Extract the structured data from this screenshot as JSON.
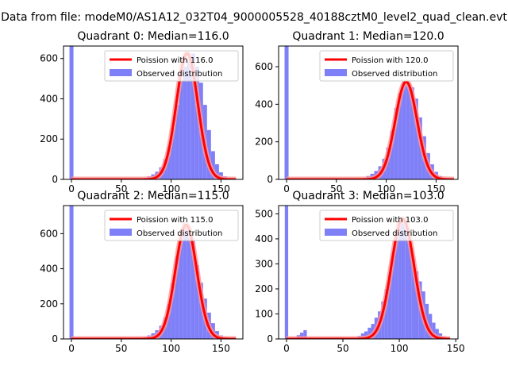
{
  "figure": {
    "suptitle": "Data from file: modeM0/AS1A12_032T04_9000005528_40188cztM0_level2_quad_clean.evt"
  },
  "colors": {
    "observed": "#7f7ff8",
    "poisson_line": "#ff0000",
    "poisson_glow": "#ff9999",
    "axis": "#000000",
    "background": "#ffffff"
  },
  "chart_data": [
    {
      "type": "bar",
      "title": "Quadrant 0: Median=116.0",
      "median": 116.0,
      "xlim": [
        -8,
        172
      ],
      "ylim": [
        0,
        662
      ],
      "xticks": [
        0,
        50,
        100,
        150
      ],
      "yticks": [
        0,
        200,
        400,
        600
      ],
      "legend": {
        "placement": "top-right",
        "line_label": "Poission with 116.0",
        "hist_label": "Observed distribution"
      },
      "hist_bins": [
        [
          -2,
          2,
          662
        ],
        [
          68,
          72,
          3
        ],
        [
          72,
          76,
          8
        ],
        [
          76,
          80,
          15
        ],
        [
          80,
          84,
          25
        ],
        [
          84,
          88,
          38
        ],
        [
          88,
          92,
          60
        ],
        [
          92,
          96,
          100
        ],
        [
          96,
          100,
          160
        ],
        [
          100,
          104,
          250
        ],
        [
          104,
          108,
          370
        ],
        [
          108,
          112,
          490
        ],
        [
          112,
          116,
          560
        ],
        [
          116,
          120,
          590
        ],
        [
          120,
          124,
          625
        ],
        [
          124,
          128,
          560
        ],
        [
          128,
          132,
          480
        ],
        [
          132,
          136,
          370
        ],
        [
          136,
          140,
          245
        ],
        [
          140,
          144,
          140
        ],
        [
          144,
          148,
          75
        ],
        [
          148,
          152,
          35
        ],
        [
          152,
          156,
          15
        ],
        [
          156,
          160,
          6
        ],
        [
          160,
          164,
          2
        ]
      ],
      "poisson_x_range": [
        0,
        165
      ]
    },
    {
      "type": "bar",
      "title": "Quadrant 1: Median=120.0",
      "median": 120.0,
      "xlim": [
        -8,
        172
      ],
      "ylim": [
        0,
        710
      ],
      "xticks": [
        0,
        50,
        100,
        150
      ],
      "yticks": [
        0,
        200,
        400,
        600
      ],
      "legend": {
        "placement": "top-right",
        "line_label": "Poission with 120.0",
        "hist_label": "Observed distribution"
      },
      "hist_bins": [
        [
          -2,
          2,
          710
        ],
        [
          72,
          76,
          3
        ],
        [
          76,
          80,
          8
        ],
        [
          80,
          84,
          18
        ],
        [
          84,
          88,
          30
        ],
        [
          88,
          92,
          45
        ],
        [
          92,
          96,
          70
        ],
        [
          96,
          100,
          110
        ],
        [
          100,
          104,
          170
        ],
        [
          104,
          108,
          260
        ],
        [
          108,
          112,
          380
        ],
        [
          112,
          116,
          460
        ],
        [
          116,
          120,
          520
        ],
        [
          120,
          124,
          510
        ],
        [
          124,
          128,
          490
        ],
        [
          128,
          132,
          430
        ],
        [
          132,
          136,
          330
        ],
        [
          136,
          140,
          230
        ],
        [
          140,
          144,
          140
        ],
        [
          144,
          148,
          80
        ],
        [
          148,
          152,
          40
        ],
        [
          152,
          156,
          18
        ],
        [
          156,
          160,
          7
        ],
        [
          160,
          164,
          3
        ]
      ],
      "poisson_x_range": [
        0,
        168
      ]
    },
    {
      "type": "bar",
      "title": "Quadrant 2: Median=115.0",
      "median": 115.0,
      "xlim": [
        -8,
        172
      ],
      "ylim": [
        0,
        760
      ],
      "xticks": [
        0,
        50,
        100,
        150
      ],
      "yticks": [
        0,
        200,
        400,
        600
      ],
      "legend": {
        "placement": "top-right",
        "line_label": "Poission with 115.0",
        "hist_label": "Observed distribution"
      },
      "hist_bins": [
        [
          -2,
          2,
          760
        ],
        [
          68,
          72,
          5
        ],
        [
          72,
          76,
          10
        ],
        [
          76,
          80,
          20
        ],
        [
          80,
          84,
          32
        ],
        [
          84,
          88,
          50
        ],
        [
          88,
          92,
          75
        ],
        [
          92,
          96,
          120
        ],
        [
          96,
          100,
          200
        ],
        [
          100,
          104,
          320
        ],
        [
          104,
          108,
          470
        ],
        [
          108,
          112,
          560
        ],
        [
          112,
          116,
          650
        ],
        [
          116,
          120,
          640
        ],
        [
          120,
          124,
          560
        ],
        [
          124,
          128,
          420
        ],
        [
          128,
          132,
          320
        ],
        [
          132,
          136,
          230
        ],
        [
          136,
          140,
          150
        ],
        [
          140,
          144,
          90
        ],
        [
          144,
          148,
          45
        ],
        [
          148,
          152,
          20
        ],
        [
          152,
          156,
          8
        ],
        [
          156,
          160,
          3
        ]
      ],
      "poisson_x_range": [
        0,
        165
      ]
    },
    {
      "type": "bar",
      "title": "Quadrant 3: Median=103.0",
      "median": 103.0,
      "xlim": [
        -7,
        152
      ],
      "ylim": [
        0,
        533
      ],
      "xticks": [
        0,
        50,
        100,
        150
      ],
      "yticks": [
        0,
        100,
        200,
        300,
        400,
        500
      ],
      "legend": {
        "placement": "top-right",
        "line_label": "Poission with 103.0",
        "hist_label": "Observed distribution"
      },
      "hist_bins": [
        [
          -1.5,
          1.5,
          533
        ],
        [
          9,
          12,
          15
        ],
        [
          12,
          15,
          25
        ],
        [
          15,
          18,
          35
        ],
        [
          63,
          66,
          12
        ],
        [
          66,
          69,
          22
        ],
        [
          69,
          72,
          30
        ],
        [
          72,
          75,
          45
        ],
        [
          75,
          78,
          60
        ],
        [
          78,
          81,
          85
        ],
        [
          81,
          84,
          110
        ],
        [
          84,
          87,
          150
        ],
        [
          87,
          90,
          200
        ],
        [
          90,
          93,
          260
        ],
        [
          93,
          96,
          340
        ],
        [
          96,
          99,
          400
        ],
        [
          99,
          102,
          460
        ],
        [
          102,
          105,
          480
        ],
        [
          105,
          108,
          440
        ],
        [
          108,
          111,
          380
        ],
        [
          111,
          114,
          320
        ],
        [
          114,
          117,
          270
        ],
        [
          117,
          120,
          230
        ],
        [
          120,
          123,
          190
        ],
        [
          123,
          126,
          140
        ],
        [
          126,
          129,
          100
        ],
        [
          129,
          132,
          65
        ],
        [
          132,
          135,
          40
        ],
        [
          135,
          138,
          22
        ],
        [
          138,
          141,
          10
        ],
        [
          141,
          144,
          4
        ]
      ],
      "poisson_x_range": [
        0,
        145
      ]
    }
  ]
}
